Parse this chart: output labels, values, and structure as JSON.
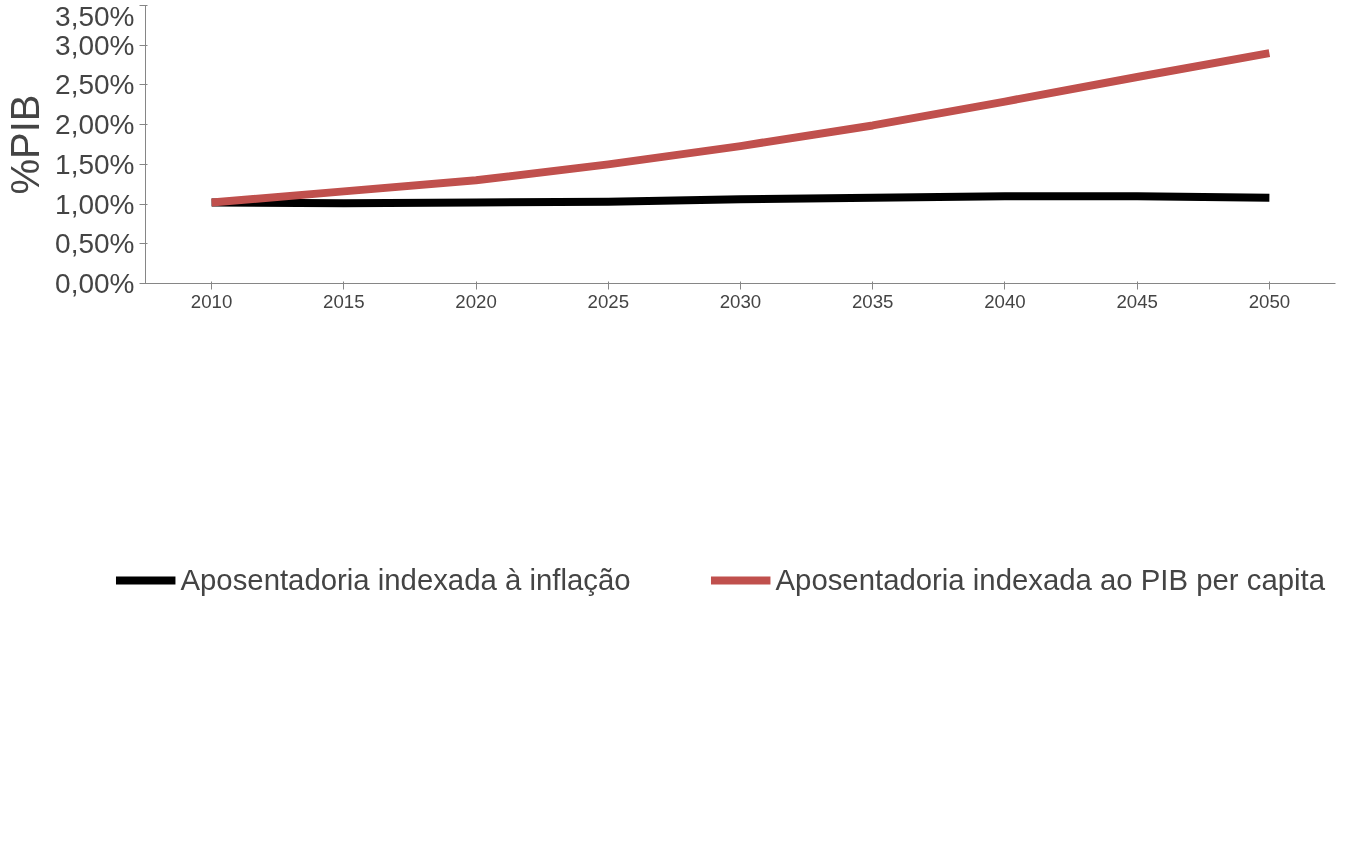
{
  "chart_data": {
    "type": "line",
    "ylabel": "%PIB",
    "categories": [
      "2010",
      "2015",
      "2020",
      "2025",
      "2030",
      "2035",
      "2040",
      "2045",
      "2050"
    ],
    "series": [
      {
        "name": "Aposentadoria indexada à inflação",
        "color": "#000000",
        "values": [
          1.02,
          1.01,
          1.02,
          1.03,
          1.06,
          1.08,
          1.1,
          1.1,
          1.08
        ]
      },
      {
        "name": "Aposentadoria indexada ao PIB per capita",
        "color": "#c0504d",
        "values": [
          1.02,
          1.16,
          1.3,
          1.5,
          1.73,
          1.99,
          2.29,
          2.6,
          2.9
        ]
      }
    ],
    "ylim": [
      0,
      3.5
    ],
    "yticks": [
      {
        "value": 0,
        "label": "0,00%"
      },
      {
        "value": 0.5,
        "label": "0,50%"
      },
      {
        "value": 1,
        "label": "1,00%"
      },
      {
        "value": 1.5,
        "label": "1,50%"
      },
      {
        "value": 2,
        "label": "2,00%"
      },
      {
        "value": 2.5,
        "label": "2,50%"
      },
      {
        "value": 3,
        "label": "3,00%"
      },
      {
        "value": 3.5,
        "label": "3,50%"
      }
    ],
    "grid": false,
    "legend": "bottom",
    "marker": "none",
    "line_style": "solid"
  }
}
